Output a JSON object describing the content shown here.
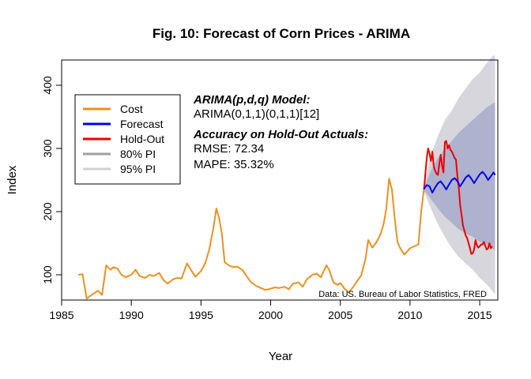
{
  "chart_data": {
    "type": "line",
    "title": "Fig. 10: Forecast of Corn Prices - ARIMA",
    "xlabel": "Year",
    "ylabel": "Index",
    "xlim": [
      1985,
      2016.3
    ],
    "ylim": [
      60,
      440
    ],
    "x_ticks": [
      "1985",
      "1990",
      "1995",
      "2000",
      "2005",
      "2010",
      "2015"
    ],
    "y_ticks": [
      "100",
      "200",
      "300",
      "400"
    ],
    "legend": {
      "position": "top-left",
      "entries": [
        {
          "label": "Cost",
          "color": "#f0901e"
        },
        {
          "label": "Forecast",
          "color": "#0000ee"
        },
        {
          "label": "Hold-Out",
          "color": "#ee0000"
        },
        {
          "label": "80% PI",
          "color": "#a0a0a0"
        },
        {
          "label": "95% PI",
          "color": "#d0d0d0"
        }
      ]
    },
    "annotation": {
      "model_heading": "ARIMA(p,d,q) Model:",
      "model_spec": "ARIMA(0,1,1)(0,1,1)[12]",
      "accuracy_heading": "Accuracy on Hold-Out Actuals:",
      "rmse": "RMSE: 72.34",
      "mape": "MAPE: 35.32%"
    },
    "source_note": "Data: US. Bureau of Labor Statistics, FRED",
    "colors": {
      "cost": "#f0901e",
      "forecast": "#0000ee",
      "holdout": "#ee0000",
      "pi80": "#aeb2cf",
      "pi95": "#d6d6dc"
    },
    "series": [
      {
        "name": "Cost",
        "x": [
          1986.2,
          1986.5,
          1986.8,
          1987.0,
          1987.3,
          1987.6,
          1987.9,
          1988.2,
          1988.5,
          1988.7,
          1989.0,
          1989.3,
          1989.6,
          1990.0,
          1990.3,
          1990.6,
          1991.0,
          1991.3,
          1991.6,
          1992.0,
          1992.3,
          1992.6,
          1993.0,
          1993.3,
          1993.6,
          1994.0,
          1994.3,
          1994.6,
          1995.0,
          1995.3,
          1995.6,
          1995.9,
          1996.1,
          1996.3,
          1996.5,
          1996.7,
          1997.0,
          1997.3,
          1997.6,
          1998.0,
          1998.3,
          1998.6,
          1999.0,
          1999.3,
          1999.6,
          2000.0,
          2000.3,
          2000.6,
          2001.0,
          2001.3,
          2001.6,
          2002.0,
          2002.3,
          2002.6,
          2003.0,
          2003.3,
          2003.6,
          2004.0,
          2004.2,
          2004.5,
          2004.8,
          2005.0,
          2005.3,
          2005.6,
          2005.9,
          2006.2,
          2006.5,
          2006.8,
          2007.0,
          2007.3,
          2007.6,
          2007.9,
          2008.1,
          2008.3,
          2008.5,
          2008.7,
          2008.9,
          2009.1,
          2009.3,
          2009.6,
          2010.0,
          2010.3,
          2010.6,
          2010.8,
          2011.0
        ],
        "values": [
          100,
          101,
          62,
          66,
          70,
          75,
          68,
          115,
          108,
          112,
          110,
          100,
          96,
          100,
          108,
          98,
          95,
          100,
          98,
          103,
          92,
          86,
          93,
          95,
          94,
          118,
          107,
          97,
          106,
          118,
          140,
          175,
          205,
          190,
          165,
          120,
          115,
          112,
          113,
          107,
          97,
          88,
          82,
          79,
          76,
          78,
          80,
          79,
          81,
          77,
          86,
          88,
          81,
          93,
          100,
          102,
          96,
          115,
          108,
          88,
          84,
          87,
          78,
          72,
          80,
          90,
          99,
          125,
          155,
          143,
          152,
          165,
          180,
          205,
          252,
          235,
          190,
          152,
          142,
          132,
          142,
          145,
          148,
          200,
          235
        ]
      },
      {
        "name": "Hold-Out",
        "x": [
          2011.0,
          2011.1,
          2011.2,
          2011.3,
          2011.4,
          2011.5,
          2011.6,
          2011.7,
          2011.8,
          2011.9,
          2012.0,
          2012.1,
          2012.2,
          2012.3,
          2012.4,
          2012.5,
          2012.6,
          2012.7,
          2012.8,
          2012.9,
          2013.0,
          2013.1,
          2013.2,
          2013.3,
          2013.4,
          2013.5,
          2013.6,
          2013.7,
          2013.8,
          2013.9,
          2014.0,
          2014.1,
          2014.2,
          2014.3,
          2014.4,
          2014.5,
          2014.6,
          2014.7,
          2014.8,
          2014.9,
          2015.0,
          2015.1,
          2015.2,
          2015.3,
          2015.4,
          2015.5,
          2015.6,
          2015.7,
          2015.8,
          2015.9
        ],
        "values": [
          235,
          260,
          285,
          300,
          292,
          280,
          295,
          272,
          265,
          260,
          258,
          275,
          290,
          272,
          262,
          310,
          312,
          300,
          305,
          298,
          295,
          290,
          285,
          282,
          255,
          238,
          210,
          195,
          178,
          170,
          162,
          158,
          150,
          142,
          133,
          134,
          140,
          155,
          147,
          143,
          145,
          148,
          148,
          152,
          146,
          140,
          142,
          150,
          142,
          145
        ]
      },
      {
        "name": "Forecast",
        "x": [
          2011.0,
          2011.2,
          2011.4,
          2011.6,
          2011.8,
          2012.0,
          2012.2,
          2012.4,
          2012.6,
          2012.8,
          2013.0,
          2013.2,
          2013.4,
          2013.6,
          2013.8,
          2014.0,
          2014.2,
          2014.4,
          2014.6,
          2014.8,
          2015.0,
          2015.2,
          2015.4,
          2015.6,
          2015.8,
          2016.0,
          2016.1
        ],
        "values": [
          236,
          242,
          240,
          230,
          238,
          245,
          248,
          242,
          235,
          243,
          250,
          253,
          248,
          240,
          247,
          254,
          258,
          252,
          245,
          252,
          259,
          263,
          258,
          250,
          256,
          262,
          258
        ]
      },
      {
        "name": "80% PI",
        "x": [
          2011.0,
          2011.5,
          2012.0,
          2012.5,
          2013.0,
          2013.5,
          2014.0,
          2014.5,
          2015.0,
          2015.5,
          2016.0,
          2016.1
        ],
        "lower": [
          234,
          220,
          205,
          192,
          182,
          172,
          165,
          160,
          152,
          148,
          140,
          138
        ],
        "upper": [
          238,
          265,
          285,
          300,
          312,
          325,
          335,
          345,
          355,
          365,
          372,
          372
        ]
      },
      {
        "name": "95% PI",
        "x": [
          2011.0,
          2011.5,
          2012.0,
          2012.5,
          2013.0,
          2013.5,
          2014.0,
          2014.5,
          2015.0,
          2015.5,
          2016.0,
          2016.1
        ],
        "lower": [
          232,
          205,
          180,
          160,
          142,
          128,
          118,
          108,
          95,
          85,
          72,
          70
        ],
        "upper": [
          240,
          290,
          320,
          345,
          360,
          380,
          395,
          410,
          420,
          435,
          448,
          445
        ]
      }
    ]
  }
}
